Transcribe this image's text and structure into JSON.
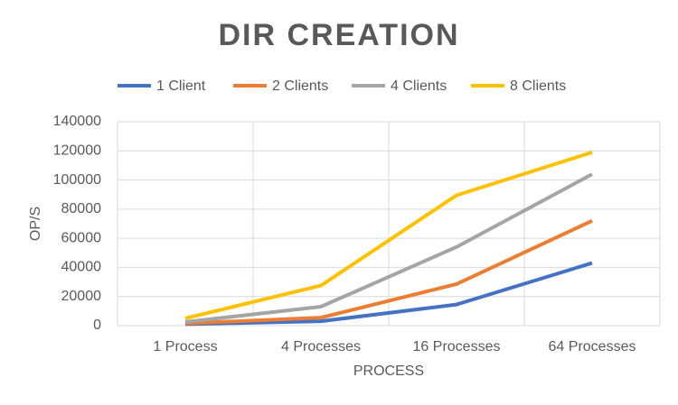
{
  "chart_data": {
    "type": "line",
    "title": "DIR CREATION",
    "x_label": "PROCESS",
    "y_label": "OP/S",
    "categories": [
      "1 Process",
      "4 Processes",
      "16 Processes",
      "64 Processes"
    ],
    "series": [
      {
        "name": "1 Client",
        "color": "#4472c4",
        "values": [
          1000,
          3000,
          14500,
          43000
        ]
      },
      {
        "name": "2 Clients",
        "color": "#ed7d31",
        "values": [
          1500,
          5500,
          28500,
          72000
        ]
      },
      {
        "name": "4 Clients",
        "color": "#a5a5a5",
        "values": [
          2500,
          13000,
          54000,
          104000
        ]
      },
      {
        "name": "8 Clients",
        "color": "#ffc000",
        "values": [
          5000,
          27500,
          89500,
          119000
        ]
      }
    ],
    "ylim": [
      0,
      140000
    ],
    "yticks": [
      0,
      20000,
      40000,
      60000,
      80000,
      100000,
      120000,
      140000
    ],
    "grid": true
  }
}
